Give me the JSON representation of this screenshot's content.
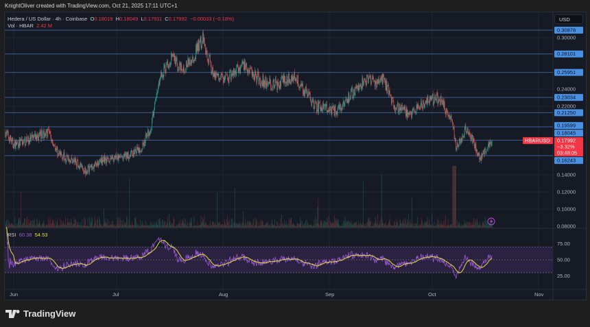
{
  "credit": "KnightOliver created with TradingView.com, Oct 21, 2025 17:11 UTC+1",
  "header": {
    "symbol_line": "Hedera / US Dollar · 4h · Coinbase",
    "o_label": "O",
    "o": "0.18019",
    "h_label": "H",
    "h": "0.18049",
    "l_label": "L",
    "l": "0.17911",
    "c_label": "C",
    "c": "0.17992",
    "change": "−0.00033 (−0.18%)",
    "vol_label": "Vol · HBAR",
    "vol": "2.42 M"
  },
  "rsi": {
    "label": "RSI",
    "value": "60.38",
    "ma": "54.53"
  },
  "currency_button": "USD",
  "current_price": {
    "symbol": "HBARUSD",
    "price": "0.17992",
    "change": "−3.32%",
    "countdown": "03:48:05"
  },
  "logo_text": "TradingView",
  "colors": {
    "up": "#26a69a",
    "down": "#ef5350",
    "level": "#4a90e2",
    "rsi": "#9c5bd6",
    "rsi_ma": "#e6e13a",
    "price_tag": "#f23645"
  },
  "chart_data": {
    "type": "candlestick",
    "title": "Hedera / US Dollar · 4h · Coinbase",
    "ylim": [
      0.08,
      0.315
    ],
    "y_ticks": [
      "0.30000",
      "0.24000",
      "0.22000",
      "0.14000",
      "0.12000",
      "0.10000",
      "0.08000"
    ],
    "x_ticks": [
      {
        "label": "Jun",
        "day": 0
      },
      {
        "label": "Jul",
        "day": 30
      },
      {
        "label": "Aug",
        "day": 61
      },
      {
        "label": "Sep",
        "day": 92
      },
      {
        "label": "Oct",
        "day": 122
      },
      {
        "label": "Nov",
        "day": 153
      }
    ],
    "levels": [
      "0.30878",
      "0.28101",
      "0.25951",
      "0.23034",
      "0.21250",
      "0.19599",
      "0.18045",
      "0.16243"
    ],
    "price_path_day_price": [
      [
        -2.4,
        0.19
      ],
      [
        0,
        0.175
      ],
      [
        4,
        0.18
      ],
      [
        10,
        0.19
      ],
      [
        13,
        0.165
      ],
      [
        18,
        0.155
      ],
      [
        21,
        0.145
      ],
      [
        26,
        0.158
      ],
      [
        32,
        0.16
      ],
      [
        37,
        0.17
      ],
      [
        40,
        0.195
      ],
      [
        42.4,
        0.25
      ],
      [
        46,
        0.28
      ],
      [
        49,
        0.26
      ],
      [
        52,
        0.275
      ],
      [
        55,
        0.3
      ],
      [
        58,
        0.26
      ],
      [
        62,
        0.25
      ],
      [
        67,
        0.27
      ],
      [
        72,
        0.25
      ],
      [
        76,
        0.245
      ],
      [
        82,
        0.255
      ],
      [
        88,
        0.22
      ],
      [
        94,
        0.215
      ],
      [
        102,
        0.25
      ],
      [
        108,
        0.25
      ],
      [
        111,
        0.22
      ],
      [
        116,
        0.21
      ],
      [
        120,
        0.225
      ],
      [
        124,
        0.23
      ],
      [
        128,
        0.2
      ],
      [
        129,
        0.17
      ],
      [
        132,
        0.195
      ],
      [
        136,
        0.16
      ],
      [
        139.6,
        0.17992
      ]
    ],
    "rsi_ylim": [
      0,
      100
    ],
    "rsi_ticks": [
      "75.00",
      "50.00",
      "25.00"
    ],
    "rsi_band": [
      30,
      70
    ]
  }
}
